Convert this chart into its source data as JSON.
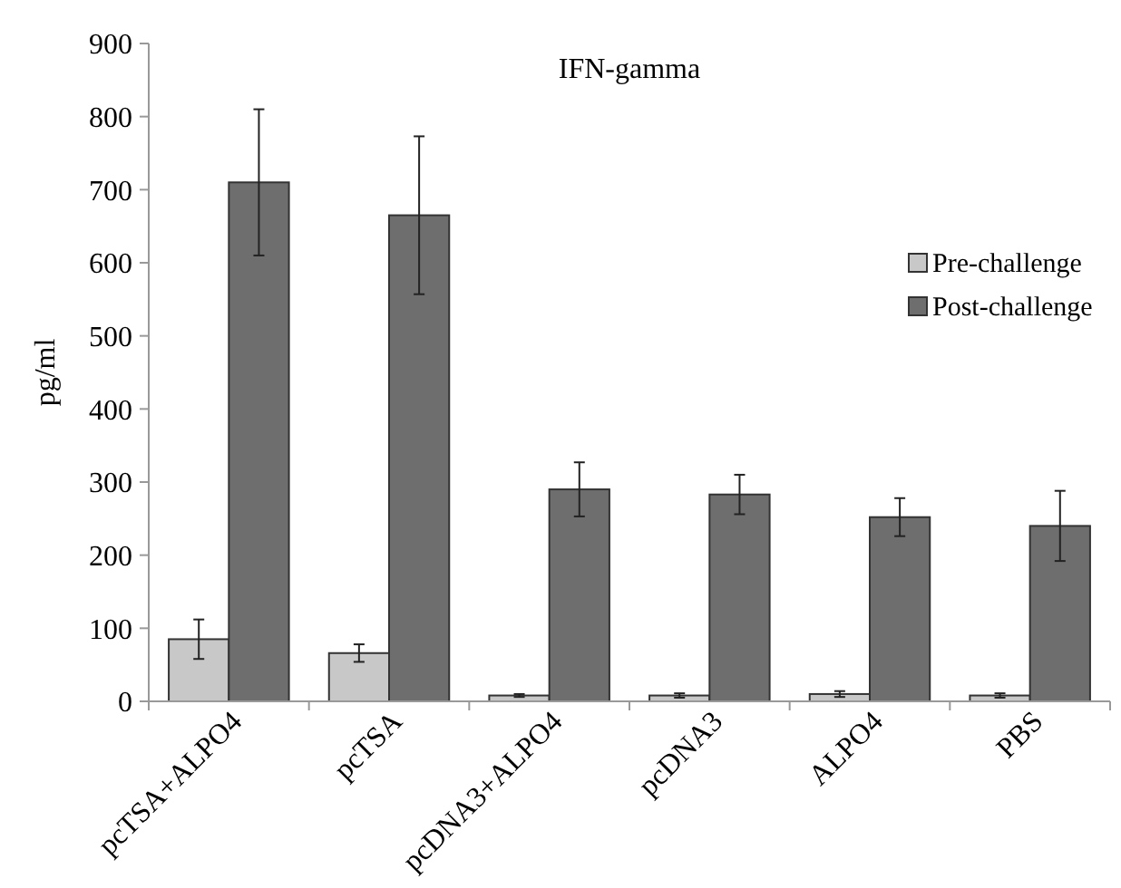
{
  "chart_data": {
    "type": "bar",
    "title": "IFN-gamma",
    "ylabel": "pg/ml",
    "categories": [
      "pcTSA+ALPO4",
      "pcTSA",
      "pcDNA3+ALPO4",
      "pcDNA3",
      "ALPO4",
      "PBS"
    ],
    "series": [
      {
        "name": "Pre-challenge",
        "color": "#c8c8c8",
        "values": [
          85,
          66,
          8,
          8,
          10,
          8
        ],
        "errors": [
          27,
          12,
          2,
          3,
          4,
          3
        ]
      },
      {
        "name": "Post-challenge",
        "color": "#6e6e6e",
        "values": [
          710,
          665,
          290,
          283,
          252,
          240
        ],
        "errors": [
          100,
          108,
          37,
          27,
          26,
          48
        ]
      }
    ],
    "ylim": [
      0,
      900
    ],
    "yticks": [
      0,
      100,
      200,
      300,
      400,
      500,
      600,
      700,
      800,
      900
    ],
    "grid": false,
    "legend": "right"
  }
}
